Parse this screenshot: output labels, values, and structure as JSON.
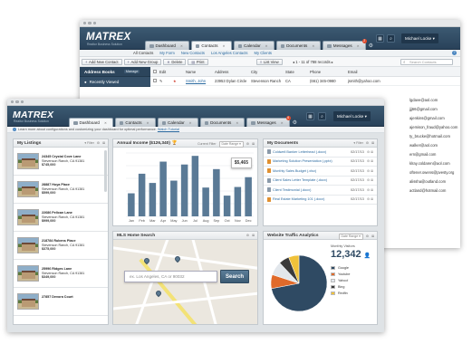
{
  "back": {
    "logo": "MATREX",
    "tagline": "Realtor Business Solution",
    "tabs": [
      "Dashboard",
      "Contacts",
      "Calendar",
      "Documents",
      "Messages"
    ],
    "messages_badge": "2",
    "user": "Michael Locke",
    "subnav": [
      "All Contacts",
      "My Form",
      "New Contacts",
      "Los Angeles Contacts",
      "My Clients"
    ],
    "toolbar": {
      "add_contact": "Add New Contact",
      "add_group": "Add New Group",
      "delete": "Delete",
      "print": "Print",
      "list_view": "List View",
      "record_count": "1 - 11 of 788 records",
      "search_placeholder": "Search Contacts"
    },
    "address_book": {
      "title": "Address Books",
      "manage": "Manage",
      "recently_viewed": "Recently Viewed"
    },
    "columns": [
      "Edit",
      "Name",
      "Address",
      "City",
      "State",
      "Phone",
      "Email"
    ],
    "row": {
      "name": "Smith, John",
      "address": "23953 Dylan Circle",
      "city": "Stevenson Ranch",
      "state": "CA",
      "phone": "(661) 345-0980",
      "email": "jsmith@yahoo.com"
    },
    "emails": [
      "lgdave@aol.com",
      "jjj66@gmail.com",
      "ajenkins@gmail.com",
      "ajemison_fraud@yahoo.com",
      "ty_brucke@hotmail.com",
      "walker@aol.com",
      "ern@gmail.com",
      "klray.coldaren@aol.com",
      "oftener.owens@pvesty.org",
      "alissha@outland.com",
      "actland@hotmail.com"
    ]
  },
  "front": {
    "logo": "MATREX",
    "tagline": "Realtor Business Solution",
    "tabs": [
      "Dashboard",
      "Contacts",
      "Calendar",
      "Documents",
      "Messages"
    ],
    "messages_badge": "6",
    "user": "Michael Locke",
    "helpbar": {
      "text": "Learn more about configurations and customizing your dashboard for optimal performance.",
      "link": "Watch Tutorial"
    },
    "listings": {
      "title": "My Listings",
      "filter": "Filter",
      "items": [
        {
          "street": "24345 Crystal Cove Lane",
          "city": "Stevenson Ranch, CA 91381",
          "price": "$745,000"
        },
        {
          "street": "28887 Hoya Place",
          "city": "Stevenson Ranch, CA 91381",
          "price": "$599,000"
        },
        {
          "street": "22686 Pelican Lane",
          "city": "Stevenson Ranch, CA 91381",
          "price": "$999,000"
        },
        {
          "street": "218784 Rubens Place",
          "city": "Stevenson Ranch, CA 91381",
          "price": "$375,000"
        },
        {
          "street": "25996 Ridges Lane",
          "city": "Stevenson Ranch, CA 91381",
          "price": "$349,000"
        },
        {
          "street": "27857 Devora Court",
          "city": "",
          "price": ""
        }
      ]
    },
    "income": {
      "title": "Annual Income ($126,340)",
      "current_filter": "Current Filter",
      "date_range": "Date Range",
      "tooltip": "$5,465"
    },
    "documents": {
      "title": "My Documents",
      "filter": "Filter",
      "items": [
        {
          "name": "Coldwell Banker Letterhead (.docx)",
          "date": "02/17/13",
          "orange": false
        },
        {
          "name": "Marketing Solution Presentation (.pptx)",
          "date": "02/17/13",
          "orange": true
        },
        {
          "name": "Monthly Sales Budget (.xlsx)",
          "date": "02/17/13",
          "orange": true
        },
        {
          "name": "Client Sales Letter Template (.docx)",
          "date": "02/17/13",
          "orange": false
        },
        {
          "name": "Client Testimonial (.docx)",
          "date": "02/17/13",
          "orange": false
        },
        {
          "name": "Real Estate Marketing 101 (.docx)",
          "date": "02/17/13",
          "orange": true
        }
      ]
    },
    "map": {
      "title": "MLS Home Search",
      "placeholder": "ex. Los Angeles, CA or 90032",
      "button": "Search"
    },
    "traffic": {
      "title": "Website Traffic Analytics",
      "date_range": "Date Range",
      "label": "Monthly Visitors",
      "value": "12,342",
      "colors": {
        "Google": "#2f4a63",
        "Youtube": "#e06a2a",
        "Yahoo!": "#e2e7ec",
        "Bing": "#3a3a3a",
        "Redfin": "#f0c23a"
      }
    }
  },
  "chart_data": [
    {
      "type": "bar",
      "title": "Annual Income ($126,340)",
      "categories": [
        "Jan",
        "Feb",
        "Mar",
        "Apr",
        "May",
        "Jun",
        "Jul",
        "Aug",
        "Sep",
        "Oct",
        "Nov",
        "Dec"
      ],
      "values": [
        4.0,
        7.4,
        5.8,
        9.5,
        6.2,
        9.0,
        10.5,
        5.0,
        8.2,
        3.6,
        5.1,
        6.8
      ],
      "ylim": [
        0,
        11
      ],
      "grid": true
    },
    {
      "type": "pie",
      "title": "Website Traffic Analytics",
      "categories": [
        "Google",
        "Youtube",
        "Yahoo!",
        "Bing",
        "Redfin"
      ],
      "values": [
        72,
        8,
        8,
        6,
        6
      ]
    }
  ]
}
